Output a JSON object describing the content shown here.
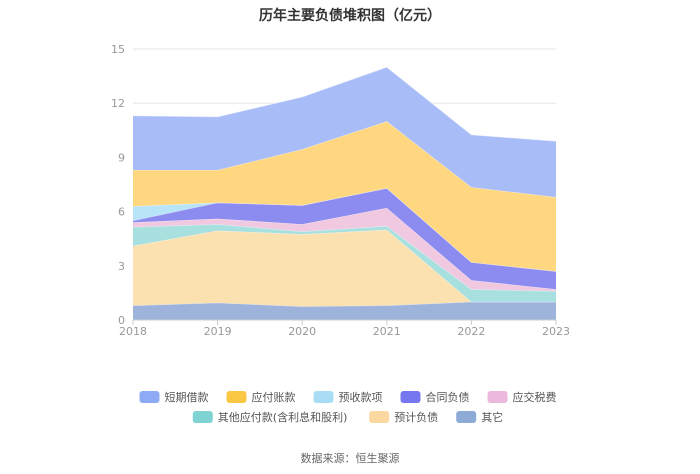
{
  "chart_data": {
    "type": "area",
    "stacked": true,
    "title": "历年主要负债堆积图（亿元）",
    "x": [
      "2018",
      "2019",
      "2020",
      "2021",
      "2022",
      "2023"
    ],
    "ylim": [
      0,
      15
    ],
    "yticks": [
      0,
      3,
      6,
      9,
      12,
      15
    ],
    "grid": true,
    "legend_position": "bottom",
    "series": [
      {
        "name": "其它",
        "color": "#9db3dc",
        "values": [
          0.8,
          0.95,
          0.75,
          0.8,
          1.0,
          1.0
        ]
      },
      {
        "name": "预计负债",
        "color": "#fbe0b0",
        "values": [
          3.3,
          4.0,
          4.0,
          4.2,
          0.0,
          0.0
        ]
      },
      {
        "name": "其他应付款(含利息和股利)",
        "color": "#a8e0e0",
        "values": [
          1.05,
          0.35,
          0.15,
          0.2,
          0.7,
          0.6
        ]
      },
      {
        "name": "应交税费",
        "color": "#f0c8e0",
        "values": [
          0.25,
          0.3,
          0.4,
          1.0,
          0.5,
          0.1
        ]
      },
      {
        "name": "合同负债",
        "color": "#8c8cf0",
        "values": [
          0.1,
          0.9,
          1.05,
          1.1,
          1.0,
          1.0
        ]
      },
      {
        "name": "预收款项",
        "color": "#b8e4f8",
        "values": [
          0.8,
          0.0,
          0.0,
          0.0,
          0.0,
          0.0
        ]
      },
      {
        "name": "应付账款",
        "color": "#fed780",
        "values": [
          2.0,
          1.8,
          3.1,
          3.7,
          4.15,
          4.1
        ]
      },
      {
        "name": "短期借款",
        "color": "#a8bcf8",
        "values": [
          3.0,
          2.95,
          2.9,
          3.0,
          2.9,
          3.1
        ]
      }
    ],
    "legend_order": [
      "短期借款",
      "应付账款",
      "预收款项",
      "合同负债",
      "应交税费",
      "其他应付款(含利息和股利)",
      "预计负债",
      "其它"
    ],
    "legend_colors": {
      "短期借款": "#8faaf5",
      "应付账款": "#fbc846",
      "预收款项": "#a9dcf5",
      "合同负债": "#7676ee",
      "应交税费": "#ecb8db",
      "其他应付款(含利息和股利)": "#7fd3d3",
      "预计负债": "#fad8a0",
      "其它": "#8eaad6"
    }
  },
  "footer": {
    "source": "数据来源：恒生聚源"
  }
}
